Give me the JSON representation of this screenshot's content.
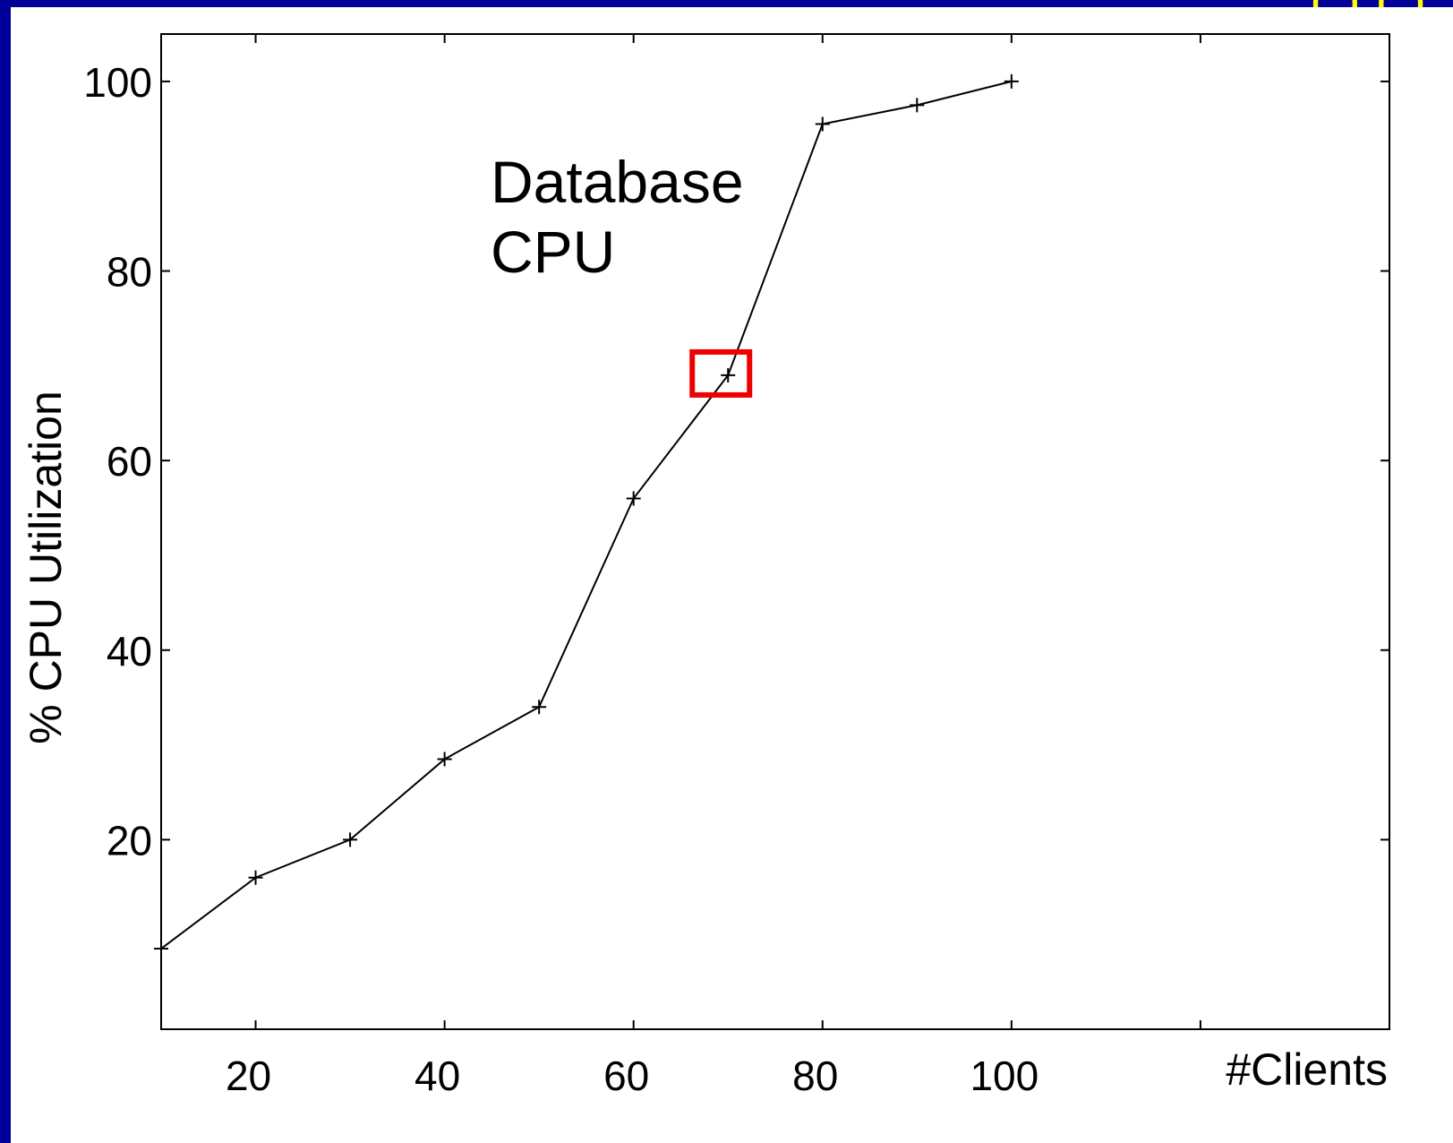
{
  "colors": {
    "background": "#000099",
    "plot_background": "#ffffff",
    "line": "#000000",
    "highlight": "#ee0000",
    "title_fragment": "#ffff00"
  },
  "slide": {
    "title_fragment": "(  ) ( )"
  },
  "chart_data": {
    "type": "line",
    "title": "",
    "xlabel": "#Clients",
    "ylabel": "% CPU Utilization",
    "xlim": [
      10,
      140
    ],
    "ylim": [
      0,
      105
    ],
    "xticks": [
      20,
      40,
      60,
      80,
      100
    ],
    "yticks": [
      20,
      40,
      60,
      80,
      100
    ],
    "x_tick_labels": [
      "20",
      "40",
      "60",
      "80",
      "100"
    ],
    "y_tick_labels": [
      "20",
      "40",
      "60",
      "80",
      "100"
    ],
    "grid": false,
    "marker": "+",
    "series": [
      {
        "x": [
          10,
          20,
          30,
          40,
          50,
          60,
          70,
          80,
          90,
          100
        ],
        "y": [
          8.5,
          16,
          20,
          28.5,
          34,
          56,
          69,
          95.5,
          97.5,
          100
        ]
      }
    ],
    "annotation": {
      "lines": [
        "Database",
        "CPU"
      ]
    },
    "highlight_point": {
      "x": 70,
      "y": 69
    }
  }
}
